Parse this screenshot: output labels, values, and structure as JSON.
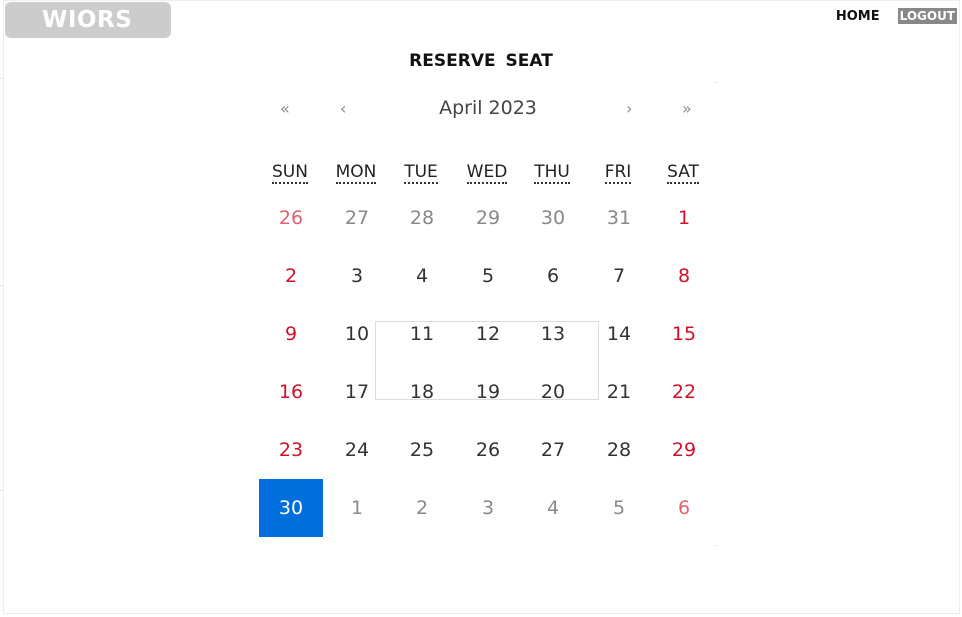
{
  "header": {
    "logo": "WIORS",
    "nav": {
      "home": "HOME",
      "logout": "LOGOUT"
    }
  },
  "page_title": "RESERVE  SEAT",
  "calendar": {
    "month_label": "April 2023",
    "nav": {
      "prev_year": "«",
      "prev_month": "‹",
      "next_month": "›",
      "next_year": "»"
    },
    "weekdays": [
      "SUN",
      "MON",
      "TUE",
      "WED",
      "THU",
      "FRI",
      "SAT"
    ],
    "weeks": [
      [
        "26",
        "27",
        "28",
        "29",
        "30",
        "31",
        "1"
      ],
      [
        "2",
        "3",
        "4",
        "5",
        "6",
        "7",
        "8"
      ],
      [
        "9",
        "10",
        "11",
        "12",
        "13",
        "14",
        "15"
      ],
      [
        "16",
        "17",
        "18",
        "19",
        "20",
        "21",
        "22"
      ],
      [
        "23",
        "24",
        "25",
        "26",
        "27",
        "28",
        "29"
      ],
      [
        "30",
        "1",
        "2",
        "3",
        "4",
        "5",
        "6"
      ]
    ],
    "other_month_cells": [
      [
        0,
        0
      ],
      [
        0,
        1
      ],
      [
        0,
        2
      ],
      [
        0,
        3
      ],
      [
        0,
        4
      ],
      [
        0,
        5
      ],
      [
        5,
        1
      ],
      [
        5,
        2
      ],
      [
        5,
        3
      ],
      [
        5,
        4
      ],
      [
        5,
        5
      ],
      [
        5,
        6
      ]
    ],
    "selected_cell": [
      5,
      0
    ],
    "colors": {
      "weekend": "#d0112b",
      "selected_bg": "#006edc",
      "other_month": "#888888"
    }
  }
}
